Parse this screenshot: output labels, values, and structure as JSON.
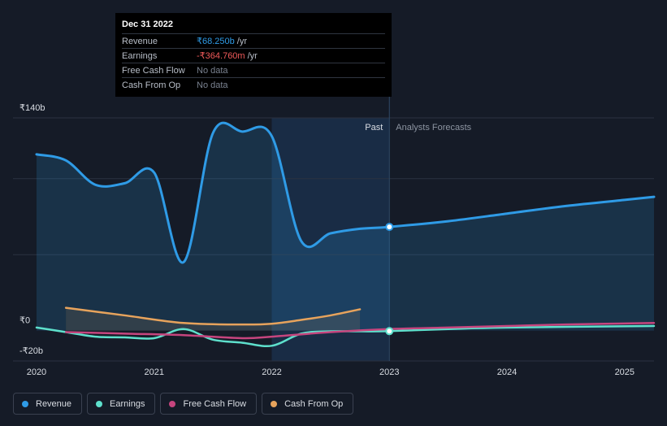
{
  "tooltip": {
    "date": "Dec 31 2022",
    "rows": [
      {
        "name": "Revenue",
        "value": "₹68.250b",
        "unit": "/yr"
      },
      {
        "name": "Earnings",
        "value": "-₹364.760m",
        "unit": "/yr"
      },
      {
        "name": "Free Cash Flow",
        "value": "No data",
        "unit": ""
      },
      {
        "name": "Cash From Op",
        "value": "No data",
        "unit": ""
      }
    ]
  },
  "labels": {
    "past": "Past",
    "forecast": "Analysts Forecasts"
  },
  "legend": [
    {
      "name": "Revenue",
      "color": "#2f9be6"
    },
    {
      "name": "Earnings",
      "color": "#5ee0cc"
    },
    {
      "name": "Free Cash Flow",
      "color": "#c6457e"
    },
    {
      "name": "Cash From Op",
      "color": "#e7a35c"
    }
  ],
  "chart_data": {
    "type": "line",
    "y_tick_labels": [
      "₹140b",
      "₹0",
      "-₹20b"
    ],
    "y_tick_values": [
      140,
      0,
      -20
    ],
    "x_tick_labels": [
      "2020",
      "2021",
      "2022",
      "2023",
      "2024",
      "2025"
    ],
    "x_tick_values": [
      2020,
      2021,
      2022,
      2023,
      2024,
      2025
    ],
    "xlim": [
      2019.8,
      2025.25
    ],
    "ylim": [
      -20,
      140
    ],
    "divider_x": 2023.0,
    "highlight_start_x": 2022.0,
    "marker_x": 2023.0,
    "units": "₹b",
    "series": [
      {
        "name": "Revenue",
        "color": "#2f9be6",
        "fill": true,
        "points": [
          [
            2020.0,
            116
          ],
          [
            2020.25,
            112
          ],
          [
            2020.5,
            96
          ],
          [
            2020.75,
            97
          ],
          [
            2021.0,
            104
          ],
          [
            2021.25,
            45
          ],
          [
            2021.5,
            130
          ],
          [
            2021.75,
            131
          ],
          [
            2022.0,
            128
          ],
          [
            2022.25,
            59
          ],
          [
            2022.5,
            64
          ],
          [
            2022.75,
            67
          ],
          [
            2023.0,
            68.25
          ],
          [
            2023.5,
            72
          ],
          [
            2024.0,
            77
          ],
          [
            2024.5,
            82
          ],
          [
            2025.0,
            86
          ],
          [
            2025.25,
            88
          ]
        ]
      },
      {
        "name": "Earnings",
        "color": "#5ee0cc",
        "fill": false,
        "points": [
          [
            2020.0,
            2
          ],
          [
            2020.25,
            -1
          ],
          [
            2020.5,
            -4
          ],
          [
            2020.75,
            -4.5
          ],
          [
            2021.0,
            -5
          ],
          [
            2021.25,
            1
          ],
          [
            2021.5,
            -6
          ],
          [
            2021.75,
            -8
          ],
          [
            2022.0,
            -10
          ],
          [
            2022.25,
            -2
          ],
          [
            2022.5,
            -0.5
          ],
          [
            2022.75,
            -0.5
          ],
          [
            2023.0,
            -0.36
          ],
          [
            2023.5,
            1
          ],
          [
            2024.0,
            2
          ],
          [
            2025.25,
            3
          ]
        ]
      },
      {
        "name": "Free Cash Flow",
        "color": "#c6457e",
        "fill": false,
        "points": [
          [
            2020.25,
            -1
          ],
          [
            2020.75,
            -2
          ],
          [
            2021.25,
            -3
          ],
          [
            2021.75,
            -5
          ],
          [
            2022.0,
            -4
          ],
          [
            2022.5,
            -1
          ],
          [
            2023.0,
            1
          ],
          [
            2023.5,
            2
          ],
          [
            2024.0,
            3
          ],
          [
            2024.5,
            4
          ],
          [
            2025.25,
            5
          ]
        ]
      },
      {
        "name": "Cash From Op",
        "color": "#e7a35c",
        "fill": true,
        "points": [
          [
            2020.25,
            15
          ],
          [
            2020.75,
            10
          ],
          [
            2021.25,
            5
          ],
          [
            2021.75,
            4
          ],
          [
            2022.0,
            4.5
          ],
          [
            2022.25,
            7
          ],
          [
            2022.5,
            10
          ],
          [
            2022.75,
            14
          ]
        ]
      }
    ]
  }
}
